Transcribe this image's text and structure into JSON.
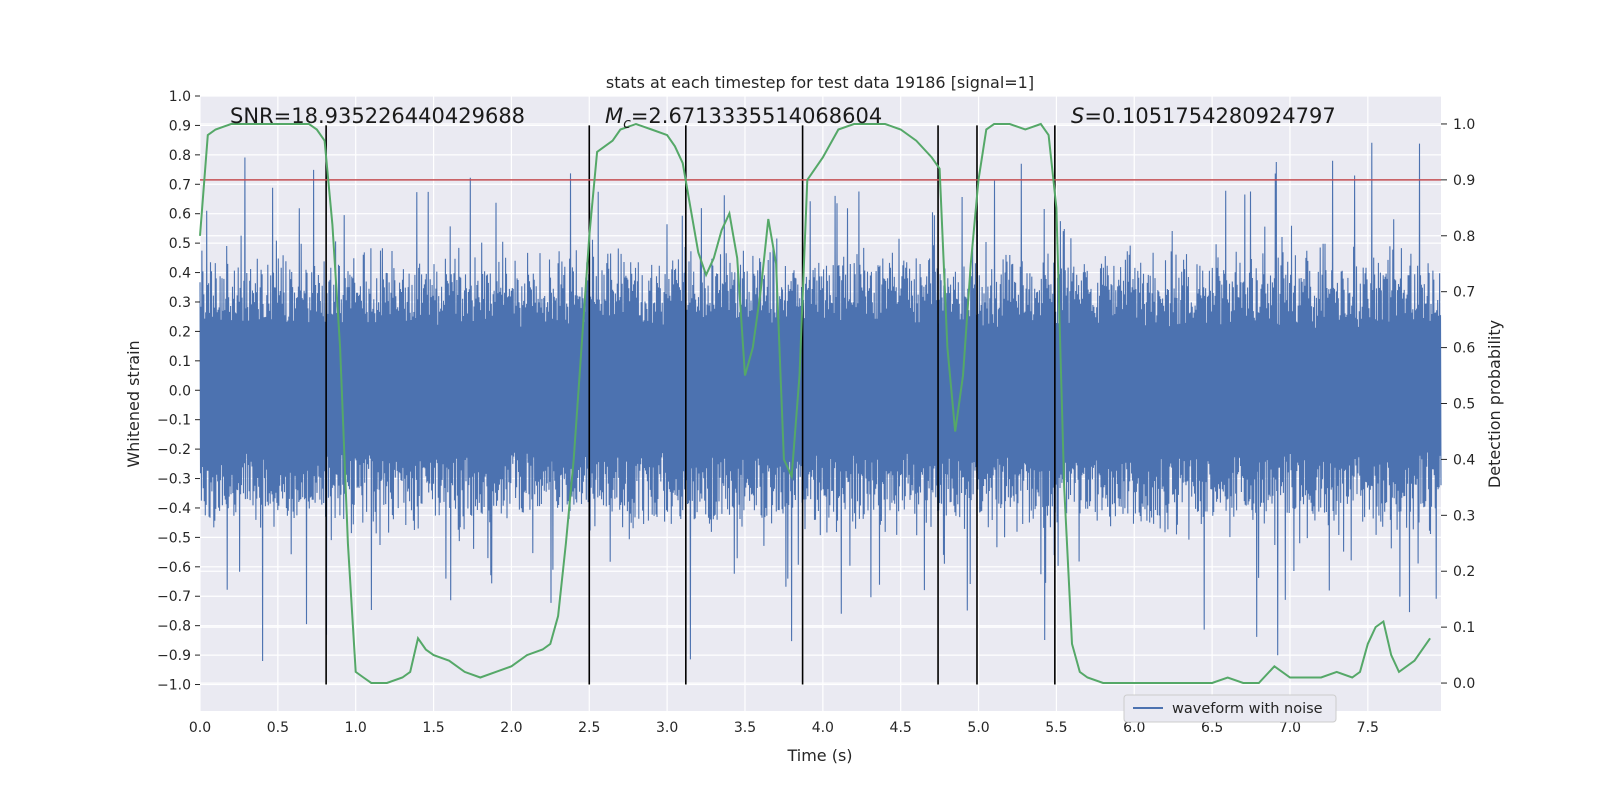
{
  "chart_data": {
    "type": "line",
    "title": "stats at each timestep for test data 19186 [signal=1]",
    "xlabel": "Time (s)",
    "ylabel_left": "Whitened strain",
    "ylabel_right": "Detection probability",
    "xlim": [
      0.0,
      7.97
    ],
    "ylim_left": [
      -1.09,
      1.0
    ],
    "ylim_right": [
      -0.05,
      1.05
    ],
    "x_ticks": [
      0.0,
      0.5,
      1.0,
      1.5,
      2.0,
      2.5,
      3.0,
      3.5,
      4.0,
      4.5,
      5.0,
      5.5,
      6.0,
      6.5,
      7.0,
      7.5
    ],
    "x_tick_labels": [
      "0.0",
      "0.5",
      "1.0",
      "1.5",
      "2.0",
      "2.5",
      "3.0",
      "3.5",
      "4.0",
      "4.5",
      "5.0",
      "5.5",
      "6.0",
      "6.5",
      "7.0",
      "7.5"
    ],
    "y_left_ticks": [
      1.0,
      0.9,
      0.8,
      0.7,
      0.6,
      0.5,
      0.4,
      0.3,
      0.2,
      0.1,
      0.0,
      -0.1,
      -0.2,
      -0.3,
      -0.4,
      -0.5,
      -0.6,
      -0.7,
      -0.8,
      -0.9,
      -1.0
    ],
    "y_left_tick_labels": [
      "1.0",
      "0.9",
      "0.8",
      "0.7",
      "0.6",
      "0.5",
      "0.4",
      "0.3",
      "0.2",
      "0.1",
      "0.0",
      "−0.1",
      "−0.2",
      "−0.3",
      "−0.4",
      "−0.5",
      "−0.6",
      "−0.7",
      "−0.8",
      "−0.9",
      "−1.0"
    ],
    "y_right_ticks": [
      1.0,
      0.9,
      0.8,
      0.7,
      0.6,
      0.5,
      0.4,
      0.3,
      0.2,
      0.1,
      0.0
    ],
    "y_right_tick_labels": [
      "1.0",
      "0.9",
      "0.8",
      "0.7",
      "0.6",
      "0.5",
      "0.4",
      "0.3",
      "0.2",
      "0.1",
      "0.0"
    ],
    "threshold": {
      "value": 0.9,
      "color": "#c44e52"
    },
    "vertical_markers": [
      0.81,
      2.5,
      3.12,
      3.87,
      4.74,
      4.99,
      5.49
    ],
    "annotations": {
      "snr": "SNR=18.935226440429688",
      "mc_prefix": "M",
      "mc_sub": "c",
      "mc_value": "=2.6713335514068604",
      "s_prefix": "S",
      "s_value": "=0.1051754280924797"
    },
    "series": [
      {
        "name": "waveform with noise",
        "color": "#4c72b0",
        "style": "dense noisy strain trace, approx. ±0.45 band with peaks to ~0.93 and troughs to ~−1.0"
      },
      {
        "name": "detection probability",
        "color": "#55a868",
        "axis": "right",
        "x": [
          0.0,
          0.05,
          0.1,
          0.2,
          0.3,
          0.4,
          0.5,
          0.6,
          0.7,
          0.75,
          0.8,
          0.85,
          0.9,
          0.95,
          1.0,
          1.05,
          1.1,
          1.2,
          1.3,
          1.35,
          1.4,
          1.45,
          1.5,
          1.6,
          1.7,
          1.8,
          1.9,
          2.0,
          2.1,
          2.2,
          2.25,
          2.3,
          2.35,
          2.4,
          2.45,
          2.5,
          2.55,
          2.6,
          2.65,
          2.7,
          2.8,
          2.9,
          3.0,
          3.05,
          3.1,
          3.15,
          3.2,
          3.25,
          3.3,
          3.35,
          3.4,
          3.45,
          3.5,
          3.55,
          3.6,
          3.65,
          3.7,
          3.75,
          3.8,
          3.85,
          3.9,
          4.0,
          4.1,
          4.2,
          4.3,
          4.4,
          4.5,
          4.6,
          4.7,
          4.75,
          4.8,
          4.85,
          4.9,
          4.95,
          5.0,
          5.05,
          5.1,
          5.2,
          5.3,
          5.4,
          5.45,
          5.5,
          5.55,
          5.6,
          5.65,
          5.7,
          5.8,
          5.9,
          6.0,
          6.2,
          6.4,
          6.5,
          6.6,
          6.7,
          6.8,
          6.9,
          7.0,
          7.1,
          7.2,
          7.3,
          7.4,
          7.45,
          7.5,
          7.55,
          7.6,
          7.65,
          7.7,
          7.8,
          7.9
        ],
        "values": [
          0.8,
          0.98,
          0.99,
          1.0,
          1.0,
          1.0,
          1.0,
          1.0,
          1.0,
          0.99,
          0.97,
          0.82,
          0.6,
          0.25,
          0.02,
          0.01,
          0.0,
          0.0,
          0.01,
          0.02,
          0.08,
          0.06,
          0.05,
          0.04,
          0.02,
          0.01,
          0.02,
          0.03,
          0.05,
          0.06,
          0.07,
          0.12,
          0.25,
          0.4,
          0.6,
          0.8,
          0.95,
          0.96,
          0.97,
          0.99,
          1.0,
          0.99,
          0.98,
          0.96,
          0.93,
          0.85,
          0.77,
          0.73,
          0.76,
          0.81,
          0.84,
          0.76,
          0.55,
          0.6,
          0.7,
          0.83,
          0.75,
          0.4,
          0.37,
          0.55,
          0.9,
          0.94,
          0.99,
          1.0,
          1.0,
          1.0,
          0.99,
          0.97,
          0.94,
          0.92,
          0.6,
          0.45,
          0.55,
          0.75,
          0.9,
          0.99,
          1.0,
          1.0,
          0.99,
          1.0,
          0.98,
          0.85,
          0.35,
          0.07,
          0.02,
          0.01,
          0.0,
          0.0,
          0.0,
          0.0,
          0.0,
          0.0,
          0.01,
          0.0,
          0.0,
          0.03,
          0.01,
          0.01,
          0.01,
          0.02,
          0.01,
          0.02,
          0.07,
          0.1,
          0.11,
          0.05,
          0.02,
          0.04,
          0.08
        ]
      }
    ],
    "legend": {
      "position": "lower-right",
      "label": "waveform with noise"
    }
  }
}
